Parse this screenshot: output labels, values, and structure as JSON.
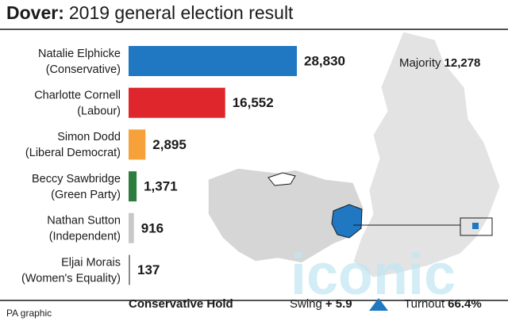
{
  "chart_data": {
    "type": "bar",
    "orientation": "horizontal",
    "title_place": "Dover:",
    "title": "2019 general election result",
    "categories": [
      "Natalie Elphicke",
      "Charlotte Cornell",
      "Simon Dodd",
      "Beccy Sawbridge",
      "Nathan Sutton",
      "Eljai Morais"
    ],
    "parties": [
      "(Conservative)",
      "(Labour)",
      "(Liberal Democrat)",
      "(Green Party)",
      "(Independent)",
      "(Women's Equality)"
    ],
    "values": [
      28830,
      16552,
      2895,
      1371,
      916,
      137
    ],
    "value_labels": [
      "28,830",
      "16,552",
      "2,895",
      "1,371",
      "916",
      "137"
    ],
    "colors": [
      "#1f78c1",
      "#e0262d",
      "#f7a13a",
      "#2e7d3e",
      "#c8c8c8",
      "#8a8a8a"
    ]
  },
  "summary": {
    "majority_label": "Majority",
    "majority": "12,278",
    "result": "Conservative Hold",
    "swing_label": "Swing",
    "swing": "+ 5.9",
    "turnout_label": "Turnout",
    "turnout": "66.4%"
  },
  "source": "PA graphic",
  "watermark": "iconic"
}
